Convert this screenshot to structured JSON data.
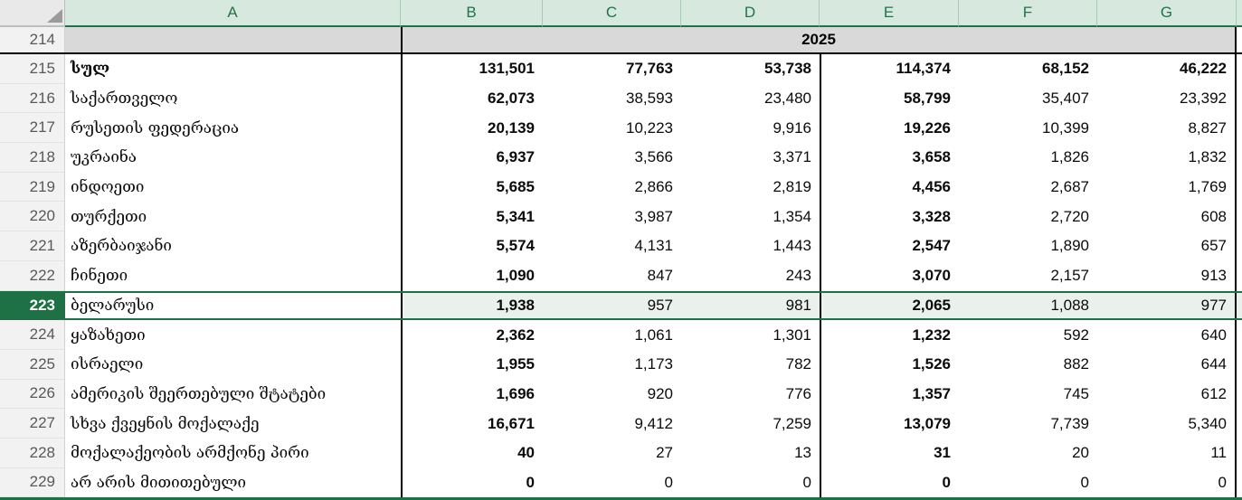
{
  "sheet": {
    "column_headers": [
      "A",
      "B",
      "C",
      "D",
      "E",
      "F",
      "G"
    ],
    "year_row": {
      "num": "214",
      "year": "2025"
    },
    "selected_row": "223",
    "colors": {
      "selection_green": "#1e7145",
      "column_header_bg": "#d7e9de",
      "column_header_text": "#217346",
      "year_row_bg": "#d9d9d9",
      "row_header_bg": "#f2f2f2",
      "row_header_text": "#595959",
      "selected_fill": "#eaf1ec",
      "table_border": "#000000"
    },
    "rows": [
      {
        "num": "215",
        "label": "სულ",
        "bold_label": true,
        "all_bold": true,
        "values": [
          "131,501",
          "77,763",
          "53,738",
          "114,374",
          "68,152",
          "46,222"
        ]
      },
      {
        "num": "216",
        "label": "საქართველო",
        "values": [
          "62,073",
          "38,593",
          "23,480",
          "58,799",
          "35,407",
          "23,392"
        ]
      },
      {
        "num": "217",
        "label": "რუსეთის ფედერაცია",
        "values": [
          "20,139",
          "10,223",
          "9,916",
          "19,226",
          "10,399",
          "8,827"
        ]
      },
      {
        "num": "218",
        "label": "უკრაინა",
        "values": [
          "6,937",
          "3,566",
          "3,371",
          "3,658",
          "1,826",
          "1,832"
        ]
      },
      {
        "num": "219",
        "label": "ინდოეთი",
        "values": [
          "5,685",
          "2,866",
          "2,819",
          "4,456",
          "2,687",
          "1,769"
        ]
      },
      {
        "num": "220",
        "label": "თურქეთი",
        "values": [
          "5,341",
          "3,987",
          "1,354",
          "3,328",
          "2,720",
          "608"
        ]
      },
      {
        "num": "221",
        "label": "აზერბაიჯანი",
        "values": [
          "5,574",
          "4,131",
          "1,443",
          "2,547",
          "1,890",
          "657"
        ]
      },
      {
        "num": "222",
        "label": "ჩინეთი",
        "values": [
          "1,090",
          "847",
          "243",
          "3,070",
          "2,157",
          "913"
        ]
      },
      {
        "num": "223",
        "label": "ბელარუსი",
        "selected": true,
        "values": [
          "1,938",
          "957",
          "981",
          "2,065",
          "1,088",
          "977"
        ]
      },
      {
        "num": "224",
        "label": "ყაზახეთი",
        "values": [
          "2,362",
          "1,061",
          "1,301",
          "1,232",
          "592",
          "640"
        ]
      },
      {
        "num": "225",
        "label": "ისრაელი",
        "values": [
          "1,955",
          "1,173",
          "782",
          "1,526",
          "882",
          "644"
        ]
      },
      {
        "num": "226",
        "label": "ამერიკის შეერთებული შტატები",
        "values": [
          "1,696",
          "920",
          "776",
          "1,357",
          "745",
          "612"
        ]
      },
      {
        "num": "227",
        "label": "სხვა ქვეყნის მოქალაქე",
        "values": [
          "16,671",
          "9,412",
          "7,259",
          "13,079",
          "7,739",
          "5,340"
        ]
      },
      {
        "num": "228",
        "label": "მოქალაქეობის არმქონე პირი",
        "values": [
          "40",
          "27",
          "13",
          "31",
          "20",
          "11"
        ]
      },
      {
        "num": "229",
        "label": "არ არის მითითებული",
        "values": [
          "0",
          "0",
          "0",
          "0",
          "0",
          "0"
        ]
      }
    ]
  }
}
